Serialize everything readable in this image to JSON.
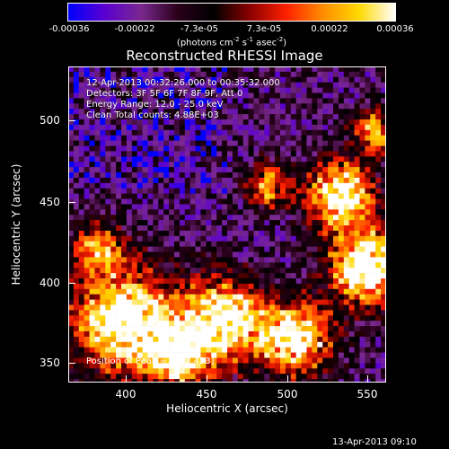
{
  "colorbar": {
    "ticks": [
      "-0.00036",
      "-0.00022",
      "-7.3e-05",
      "7.3e-05",
      "0.00022",
      "0.00036"
    ],
    "units_text": "(photons cm",
    "units_exp1": "-2",
    "units_mid": " s",
    "units_exp2": "-1",
    "units_mid2": " asec",
    "units_exp3": "-2",
    "units_end": ")",
    "colors": [
      "#0000ff",
      "#5a00d0",
      "#7a2890",
      "#2a001a",
      "#000000",
      "#8a0000",
      "#ff2000",
      "#ff8c00",
      "#ffd800",
      "#ffffff"
    ]
  },
  "title": "Reconstructed RHESSI Image",
  "info_lines": [
    "12-Apr-2013 00:32:26.000 to 00:35:32.000",
    "Detectors: 3F 5F 6F 7F 8F 9F, Att 0",
    "Energy Range: 12.0 - 25.0 keV",
    "Clean    Total counts: 4.88E+03"
  ],
  "peak_text": "Position of Peak = [542,453]",
  "xaxis": {
    "label": "Heliocentric X (arcsec)",
    "ticks": [
      "400",
      "450",
      "500",
      "550"
    ]
  },
  "yaxis": {
    "label": "Heliocentric Y (arcsec)",
    "ticks": [
      "350",
      "400",
      "450",
      "500"
    ]
  },
  "footer": "13-Apr-2013 09:10"
}
